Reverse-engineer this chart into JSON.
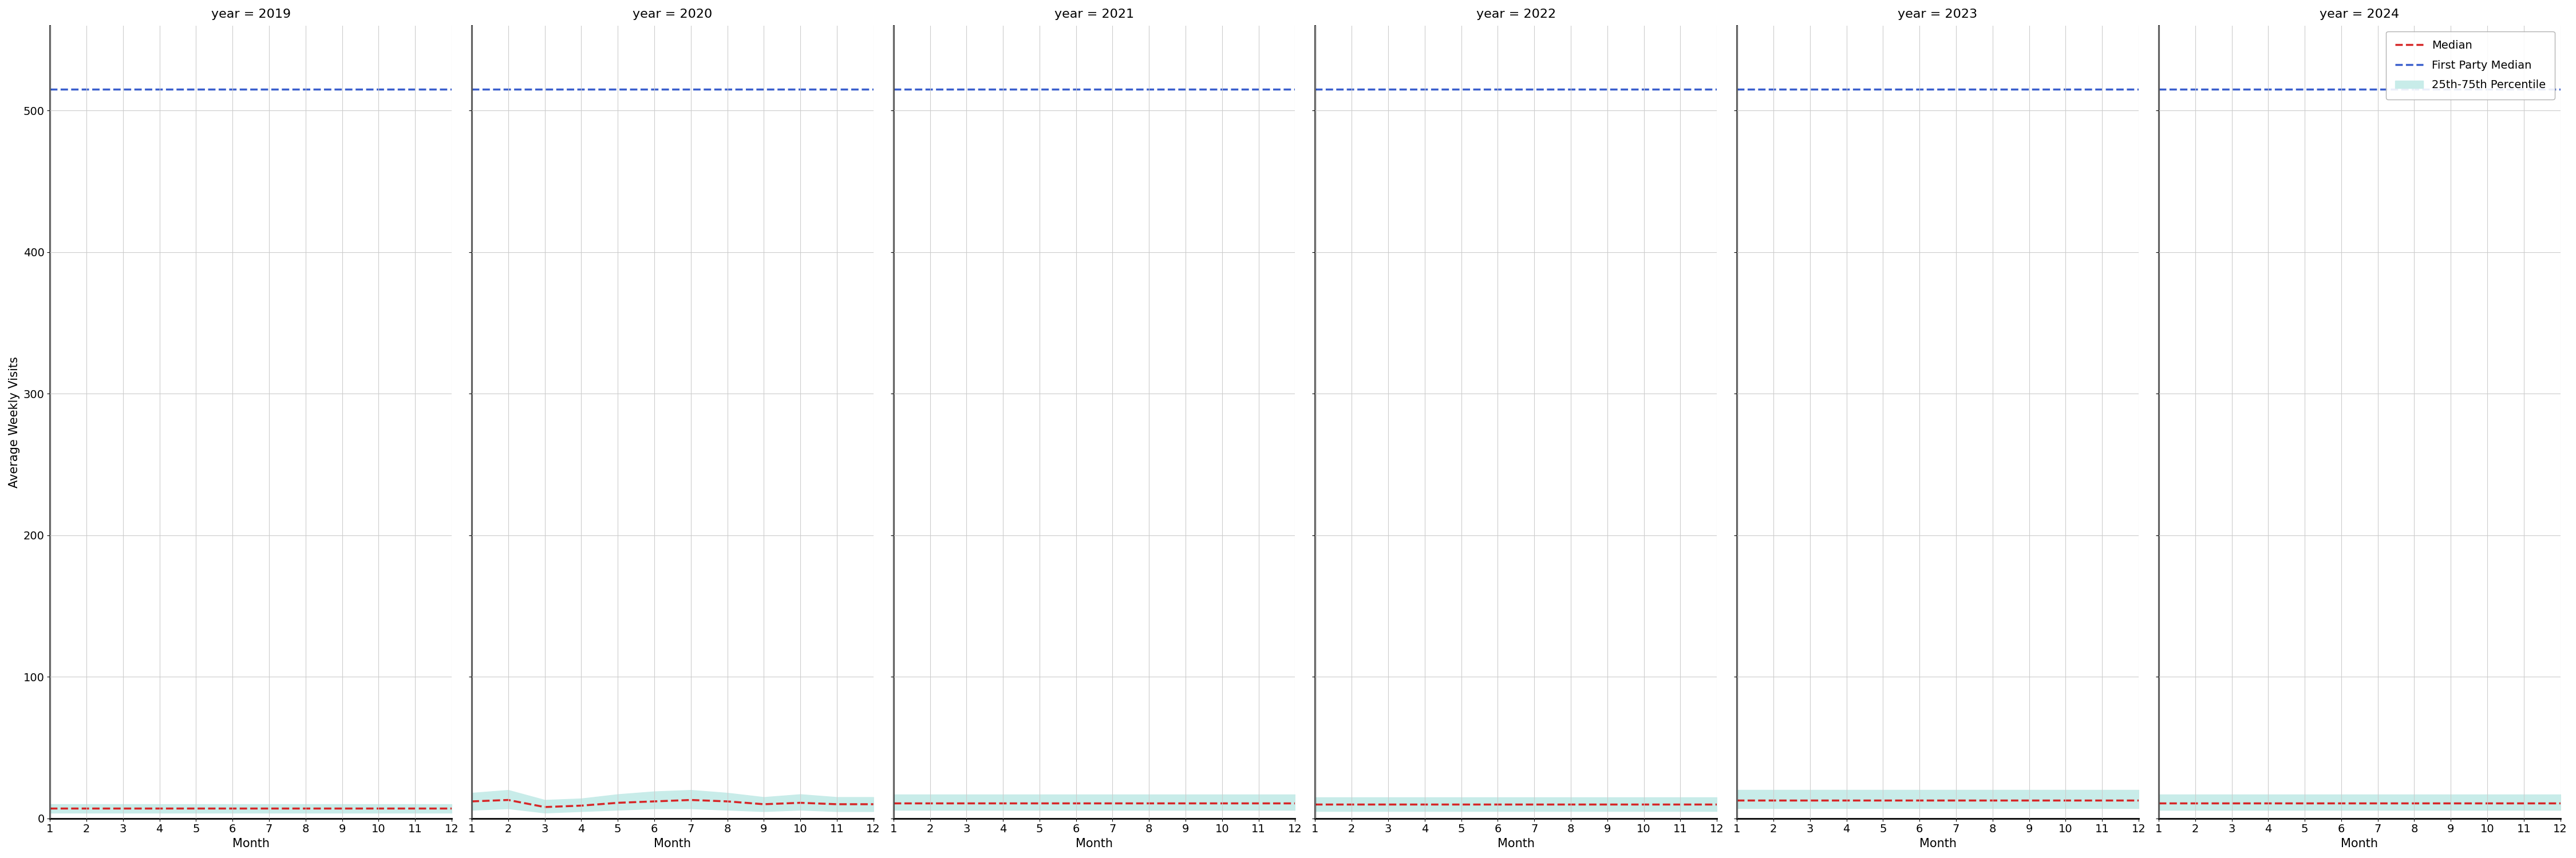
{
  "years": [
    2019,
    2020,
    2021,
    2022,
    2023,
    2024
  ],
  "months": [
    1,
    2,
    3,
    4,
    5,
    6,
    7,
    8,
    9,
    10,
    11,
    12
  ],
  "first_party_median": 515,
  "median_values": {
    "2019": [
      7,
      7,
      7,
      7,
      7,
      7,
      7,
      7,
      7,
      7,
      7,
      7
    ],
    "2020": [
      12,
      13,
      8,
      9,
      11,
      12,
      13,
      12,
      10,
      11,
      10,
      10
    ],
    "2021": [
      11,
      11,
      11,
      11,
      11,
      11,
      11,
      11,
      11,
      11,
      11,
      11
    ],
    "2022": [
      10,
      10,
      10,
      10,
      10,
      10,
      10,
      10,
      10,
      10,
      10,
      10
    ],
    "2023": [
      13,
      13,
      13,
      13,
      13,
      13,
      13,
      13,
      13,
      13,
      13,
      13
    ],
    "2024": [
      11,
      11,
      11,
      11,
      11,
      11,
      11,
      11,
      11,
      11,
      11,
      11
    ]
  },
  "p25_values": {
    "2019": [
      4,
      4,
      4,
      4,
      4,
      4,
      4,
      4,
      4,
      4,
      4,
      4
    ],
    "2020": [
      6,
      7,
      4,
      5,
      6,
      7,
      7,
      6,
      5,
      6,
      5,
      5
    ],
    "2021": [
      6,
      6,
      6,
      6,
      6,
      6,
      6,
      6,
      6,
      6,
      6,
      6
    ],
    "2022": [
      5,
      5,
      5,
      5,
      5,
      5,
      5,
      5,
      5,
      5,
      5,
      5
    ],
    "2023": [
      7,
      7,
      7,
      7,
      7,
      7,
      7,
      7,
      7,
      7,
      7,
      7
    ],
    "2024": [
      6,
      6,
      6,
      6,
      6,
      6,
      6,
      6,
      6,
      6,
      6,
      6
    ]
  },
  "p75_values": {
    "2019": [
      10,
      10,
      10,
      10,
      10,
      10,
      10,
      10,
      10,
      10,
      10,
      10
    ],
    "2020": [
      18,
      20,
      13,
      14,
      17,
      19,
      20,
      18,
      15,
      17,
      15,
      15
    ],
    "2021": [
      17,
      17,
      17,
      17,
      17,
      17,
      17,
      17,
      17,
      17,
      17,
      17
    ],
    "2022": [
      15,
      15,
      15,
      15,
      15,
      15,
      15,
      15,
      15,
      15,
      15,
      15
    ],
    "2023": [
      20,
      20,
      20,
      20,
      20,
      20,
      20,
      20,
      20,
      20,
      20,
      20
    ],
    "2024": [
      17,
      17,
      17,
      17,
      17,
      17,
      17,
      17,
      17,
      17,
      17,
      17
    ]
  },
  "ylim": [
    0,
    560
  ],
  "yticks": [
    0,
    100,
    200,
    300,
    400,
    500
  ],
  "median_color": "#d62728",
  "first_party_color": "#3a5fcd",
  "percentile_color": "#c8ece9",
  "grid_color": "#cccccc",
  "background_color": "#ffffff",
  "ylabel": "Average Weekly Visits",
  "xlabel": "Month",
  "legend_labels": [
    "Median",
    "First Party Median",
    "25th-75th Percentile"
  ]
}
